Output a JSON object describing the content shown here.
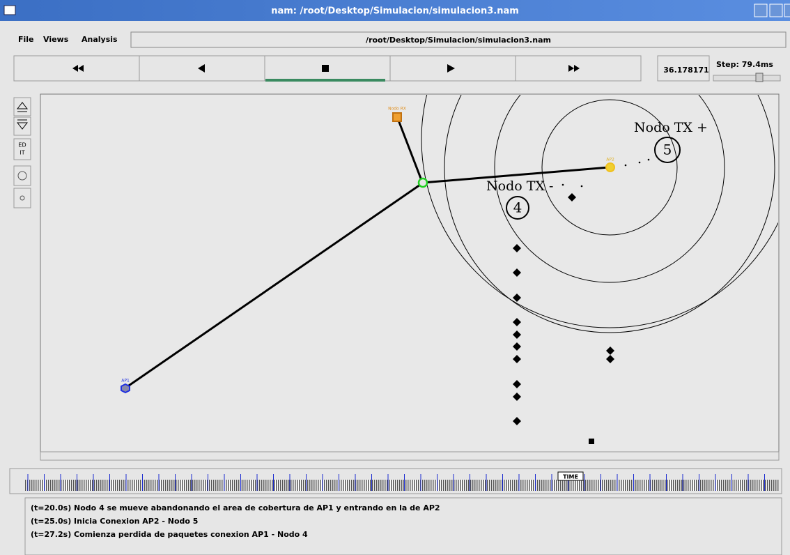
{
  "window": {
    "title": "nam: /root/Desktop/Simulacion/simulacion3.nam"
  },
  "menu": [
    "File",
    "Views",
    "Analysis"
  ],
  "file_path": "/root/Desktop/Simulacion/simulacion3.nam",
  "controls": {
    "time": "36.178171",
    "step": "Step: 79.4ms"
  },
  "toolbar": {
    "edit": [
      "ED",
      "IT"
    ]
  },
  "nodes": [
    {
      "label": "Nodo RX"
    },
    {
      "label": "AP2"
    },
    {
      "label": "AP1"
    }
  ],
  "canvas_labels": [
    {
      "label": "Nodo TX +",
      "number": "5"
    },
    {
      "label": "Nodo TX -",
      "number": "4"
    }
  ],
  "timeline": {
    "label": "TIME"
  },
  "annotations": [
    "(t=20.0s) Nodo 4 se mueve abandonando el area de cobertura de AP1 y entrando en la de AP2",
    "(t=25.0s) Inicia Conexion AP2 - Nodo 5",
    "(t=27.2s) Comienza perdida de paquetes conexion AP1 - Nodo 4"
  ]
}
